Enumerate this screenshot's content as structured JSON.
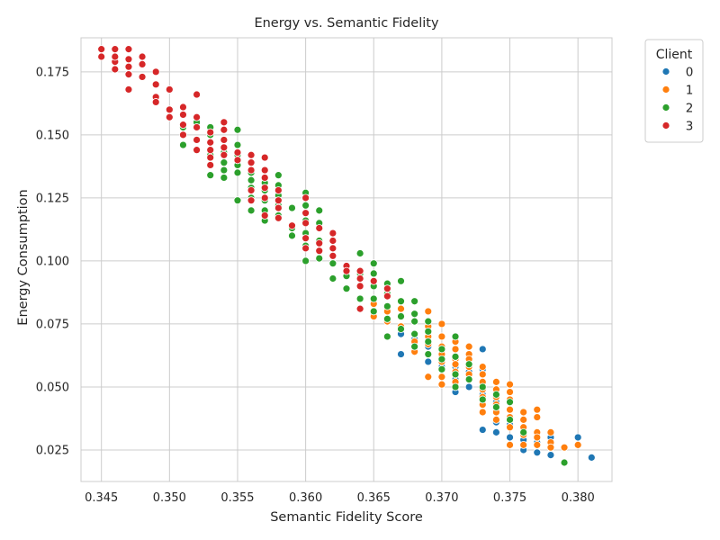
{
  "chart_data": {
    "type": "scatter",
    "title": "Energy vs. Semantic Fidelity",
    "xlabel": "Semantic Fidelity Score",
    "ylabel": "Energy Consumption",
    "xlim": [
      0.3435,
      0.3825
    ],
    "ylim": [
      0.0125,
      0.1885
    ],
    "xticks": [
      0.345,
      0.35,
      0.355,
      0.36,
      0.365,
      0.37,
      0.375,
      0.38
    ],
    "xtick_labels": [
      "0.345",
      "0.350",
      "0.355",
      "0.360",
      "0.365",
      "0.370",
      "0.375",
      "0.380"
    ],
    "yticks": [
      0.025,
      0.05,
      0.075,
      0.1,
      0.125,
      0.15,
      0.175
    ],
    "ytick_labels": [
      "0.025",
      "0.050",
      "0.075",
      "0.100",
      "0.125",
      "0.150",
      "0.175"
    ],
    "grid": true,
    "legend": {
      "title": "Client",
      "placement": "outside-top-right"
    },
    "series": [
      {
        "name": "0",
        "color": "#1f77b4",
        "points": [
          [
            0.367,
            0.063
          ],
          [
            0.367,
            0.071
          ],
          [
            0.368,
            0.069
          ],
          [
            0.369,
            0.06
          ],
          [
            0.369,
            0.066
          ],
          [
            0.37,
            0.058
          ],
          [
            0.37,
            0.062
          ],
          [
            0.371,
            0.048
          ],
          [
            0.371,
            0.053
          ],
          [
            0.371,
            0.058
          ],
          [
            0.372,
            0.05
          ],
          [
            0.372,
            0.056
          ],
          [
            0.373,
            0.065
          ],
          [
            0.373,
            0.057
          ],
          [
            0.373,
            0.047
          ],
          [
            0.373,
            0.033
          ],
          [
            0.374,
            0.032
          ],
          [
            0.374,
            0.036
          ],
          [
            0.374,
            0.044
          ],
          [
            0.375,
            0.035
          ],
          [
            0.375,
            0.03
          ],
          [
            0.376,
            0.025
          ],
          [
            0.376,
            0.029
          ],
          [
            0.377,
            0.024
          ],
          [
            0.377,
            0.028
          ],
          [
            0.378,
            0.023
          ],
          [
            0.378,
            0.03
          ],
          [
            0.38,
            0.03
          ],
          [
            0.381,
            0.022
          ]
        ]
      },
      {
        "name": "1",
        "color": "#ff7f0e",
        "points": [
          [
            0.365,
            0.078
          ],
          [
            0.365,
            0.083
          ],
          [
            0.366,
            0.08
          ],
          [
            0.366,
            0.076
          ],
          [
            0.367,
            0.074
          ],
          [
            0.367,
            0.078
          ],
          [
            0.367,
            0.081
          ],
          [
            0.368,
            0.071
          ],
          [
            0.368,
            0.068
          ],
          [
            0.368,
            0.064
          ],
          [
            0.369,
            0.08
          ],
          [
            0.369,
            0.074
          ],
          [
            0.369,
            0.07
          ],
          [
            0.369,
            0.067
          ],
          [
            0.369,
            0.054
          ],
          [
            0.37,
            0.075
          ],
          [
            0.37,
            0.07
          ],
          [
            0.37,
            0.066
          ],
          [
            0.37,
            0.063
          ],
          [
            0.37,
            0.06
          ],
          [
            0.37,
            0.057
          ],
          [
            0.37,
            0.054
          ],
          [
            0.37,
            0.051
          ],
          [
            0.371,
            0.068
          ],
          [
            0.371,
            0.065
          ],
          [
            0.371,
            0.061
          ],
          [
            0.371,
            0.059
          ],
          [
            0.371,
            0.056
          ],
          [
            0.371,
            0.052
          ],
          [
            0.372,
            0.066
          ],
          [
            0.372,
            0.063
          ],
          [
            0.372,
            0.061
          ],
          [
            0.372,
            0.058
          ],
          [
            0.372,
            0.055
          ],
          [
            0.372,
            0.053
          ],
          [
            0.373,
            0.058
          ],
          [
            0.373,
            0.055
          ],
          [
            0.373,
            0.052
          ],
          [
            0.373,
            0.049
          ],
          [
            0.373,
            0.046
          ],
          [
            0.373,
            0.043
          ],
          [
            0.373,
            0.04
          ],
          [
            0.374,
            0.052
          ],
          [
            0.374,
            0.049
          ],
          [
            0.374,
            0.046
          ],
          [
            0.374,
            0.043
          ],
          [
            0.374,
            0.04
          ],
          [
            0.374,
            0.037
          ],
          [
            0.375,
            0.051
          ],
          [
            0.375,
            0.048
          ],
          [
            0.375,
            0.045
          ],
          [
            0.375,
            0.041
          ],
          [
            0.375,
            0.038
          ],
          [
            0.375,
            0.034
          ],
          [
            0.375,
            0.027
          ],
          [
            0.376,
            0.04
          ],
          [
            0.376,
            0.037
          ],
          [
            0.376,
            0.034
          ],
          [
            0.376,
            0.031
          ],
          [
            0.376,
            0.027
          ],
          [
            0.377,
            0.041
          ],
          [
            0.377,
            0.038
          ],
          [
            0.377,
            0.032
          ],
          [
            0.377,
            0.03
          ],
          [
            0.377,
            0.027
          ],
          [
            0.378,
            0.032
          ],
          [
            0.378,
            0.028
          ],
          [
            0.378,
            0.026
          ],
          [
            0.379,
            0.026
          ],
          [
            0.38,
            0.027
          ]
        ]
      },
      {
        "name": "2",
        "color": "#2ca02c",
        "points": [
          [
            0.351,
            0.146
          ],
          [
            0.351,
            0.153
          ],
          [
            0.352,
            0.148
          ],
          [
            0.352,
            0.155
          ],
          [
            0.353,
            0.134
          ],
          [
            0.353,
            0.142
          ],
          [
            0.353,
            0.15
          ],
          [
            0.353,
            0.153
          ],
          [
            0.354,
            0.133
          ],
          [
            0.354,
            0.136
          ],
          [
            0.354,
            0.139
          ],
          [
            0.354,
            0.143
          ],
          [
            0.354,
            0.148
          ],
          [
            0.355,
            0.124
          ],
          [
            0.355,
            0.135
          ],
          [
            0.355,
            0.138
          ],
          [
            0.355,
            0.142
          ],
          [
            0.355,
            0.146
          ],
          [
            0.355,
            0.152
          ],
          [
            0.356,
            0.12
          ],
          [
            0.356,
            0.125
          ],
          [
            0.356,
            0.129
          ],
          [
            0.356,
            0.132
          ],
          [
            0.356,
            0.135
          ],
          [
            0.357,
            0.116
          ],
          [
            0.357,
            0.12
          ],
          [
            0.357,
            0.124
          ],
          [
            0.357,
            0.128
          ],
          [
            0.357,
            0.131
          ],
          [
            0.358,
            0.118
          ],
          [
            0.358,
            0.122
          ],
          [
            0.358,
            0.126
          ],
          [
            0.358,
            0.13
          ],
          [
            0.358,
            0.134
          ],
          [
            0.359,
            0.11
          ],
          [
            0.359,
            0.113
          ],
          [
            0.359,
            0.121
          ],
          [
            0.36,
            0.1
          ],
          [
            0.36,
            0.106
          ],
          [
            0.36,
            0.111
          ],
          [
            0.36,
            0.116
          ],
          [
            0.36,
            0.122
          ],
          [
            0.36,
            0.127
          ],
          [
            0.361,
            0.101
          ],
          [
            0.361,
            0.108
          ],
          [
            0.361,
            0.115
          ],
          [
            0.361,
            0.12
          ],
          [
            0.362,
            0.093
          ],
          [
            0.362,
            0.099
          ],
          [
            0.362,
            0.105
          ],
          [
            0.362,
            0.111
          ],
          [
            0.363,
            0.089
          ],
          [
            0.363,
            0.094
          ],
          [
            0.364,
            0.085
          ],
          [
            0.364,
            0.09
          ],
          [
            0.364,
            0.095
          ],
          [
            0.364,
            0.103
          ],
          [
            0.365,
            0.08
          ],
          [
            0.365,
            0.085
          ],
          [
            0.365,
            0.09
          ],
          [
            0.365,
            0.095
          ],
          [
            0.365,
            0.099
          ],
          [
            0.366,
            0.07
          ],
          [
            0.366,
            0.077
          ],
          [
            0.366,
            0.082
          ],
          [
            0.366,
            0.087
          ],
          [
            0.366,
            0.091
          ],
          [
            0.367,
            0.073
          ],
          [
            0.367,
            0.078
          ],
          [
            0.367,
            0.084
          ],
          [
            0.367,
            0.092
          ],
          [
            0.368,
            0.066
          ],
          [
            0.368,
            0.071
          ],
          [
            0.368,
            0.076
          ],
          [
            0.368,
            0.079
          ],
          [
            0.368,
            0.084
          ],
          [
            0.369,
            0.063
          ],
          [
            0.369,
            0.068
          ],
          [
            0.369,
            0.072
          ],
          [
            0.369,
            0.076
          ],
          [
            0.37,
            0.057
          ],
          [
            0.37,
            0.061
          ],
          [
            0.37,
            0.065
          ],
          [
            0.371,
            0.05
          ],
          [
            0.371,
            0.055
          ],
          [
            0.371,
            0.062
          ],
          [
            0.371,
            0.07
          ],
          [
            0.372,
            0.053
          ],
          [
            0.372,
            0.059
          ],
          [
            0.373,
            0.045
          ],
          [
            0.373,
            0.05
          ],
          [
            0.374,
            0.042
          ],
          [
            0.374,
            0.047
          ],
          [
            0.375,
            0.037
          ],
          [
            0.375,
            0.044
          ],
          [
            0.376,
            0.032
          ],
          [
            0.379,
            0.02
          ]
        ]
      },
      {
        "name": "3",
        "color": "#d62728",
        "points": [
          [
            0.345,
            0.184
          ],
          [
            0.345,
            0.181
          ],
          [
            0.346,
            0.184
          ],
          [
            0.346,
            0.179
          ],
          [
            0.346,
            0.176
          ],
          [
            0.346,
            0.181
          ],
          [
            0.347,
            0.184
          ],
          [
            0.347,
            0.18
          ],
          [
            0.347,
            0.177
          ],
          [
            0.347,
            0.174
          ],
          [
            0.347,
            0.168
          ],
          [
            0.348,
            0.181
          ],
          [
            0.348,
            0.178
          ],
          [
            0.348,
            0.173
          ],
          [
            0.349,
            0.175
          ],
          [
            0.349,
            0.17
          ],
          [
            0.349,
            0.165
          ],
          [
            0.349,
            0.163
          ],
          [
            0.35,
            0.168
          ],
          [
            0.35,
            0.16
          ],
          [
            0.35,
            0.157
          ],
          [
            0.351,
            0.161
          ],
          [
            0.351,
            0.158
          ],
          [
            0.351,
            0.154
          ],
          [
            0.351,
            0.15
          ],
          [
            0.352,
            0.166
          ],
          [
            0.352,
            0.157
          ],
          [
            0.352,
            0.153
          ],
          [
            0.352,
            0.148
          ],
          [
            0.352,
            0.144
          ],
          [
            0.353,
            0.151
          ],
          [
            0.353,
            0.147
          ],
          [
            0.353,
            0.144
          ],
          [
            0.353,
            0.141
          ],
          [
            0.353,
            0.138
          ],
          [
            0.354,
            0.155
          ],
          [
            0.354,
            0.152
          ],
          [
            0.354,
            0.148
          ],
          [
            0.354,
            0.145
          ],
          [
            0.354,
            0.142
          ],
          [
            0.355,
            0.143
          ],
          [
            0.355,
            0.14
          ],
          [
            0.356,
            0.142
          ],
          [
            0.356,
            0.139
          ],
          [
            0.356,
            0.136
          ],
          [
            0.356,
            0.128
          ],
          [
            0.356,
            0.124
          ],
          [
            0.357,
            0.141
          ],
          [
            0.357,
            0.136
          ],
          [
            0.357,
            0.133
          ],
          [
            0.357,
            0.129
          ],
          [
            0.357,
            0.125
          ],
          [
            0.357,
            0.118
          ],
          [
            0.358,
            0.128
          ],
          [
            0.358,
            0.124
          ],
          [
            0.358,
            0.121
          ],
          [
            0.358,
            0.117
          ],
          [
            0.359,
            0.114
          ],
          [
            0.36,
            0.125
          ],
          [
            0.36,
            0.119
          ],
          [
            0.36,
            0.115
          ],
          [
            0.36,
            0.109
          ],
          [
            0.36,
            0.105
          ],
          [
            0.361,
            0.113
          ],
          [
            0.361,
            0.107
          ],
          [
            0.361,
            0.104
          ],
          [
            0.362,
            0.111
          ],
          [
            0.362,
            0.108
          ],
          [
            0.362,
            0.105
          ],
          [
            0.362,
            0.102
          ],
          [
            0.363,
            0.098
          ],
          [
            0.363,
            0.096
          ],
          [
            0.364,
            0.096
          ],
          [
            0.364,
            0.093
          ],
          [
            0.364,
            0.09
          ],
          [
            0.364,
            0.081
          ],
          [
            0.365,
            0.092
          ],
          [
            0.366,
            0.089
          ],
          [
            0.366,
            0.086
          ]
        ]
      }
    ]
  }
}
